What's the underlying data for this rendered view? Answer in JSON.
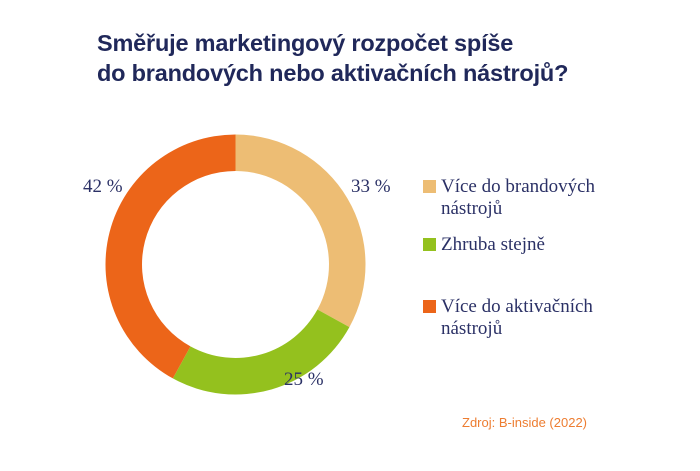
{
  "title": {
    "line1": "Směřuje marketingový rozpočet spíše",
    "line2": "do brandových nebo aktivačních nástrojů?"
  },
  "source": "Zdroj: B-inside (2022)",
  "colors": {
    "title_navy": "#20285a",
    "label_navy": "#2b3166",
    "source_orange": "#ed7d31",
    "background": "#ffffff"
  },
  "chart_data": {
    "type": "pie",
    "variant": "donut",
    "title": "Směřuje marketingový rozpočet spíše do brandových nebo aktivačních nástrojů?",
    "start_angle_deg": 0,
    "direction": "clockwise",
    "inner_radius_ratio": 0.72,
    "legend_position": "right",
    "slices": [
      {
        "name": "Více do brandových nástrojů",
        "value": 33,
        "label": "33 %",
        "color": "#edbd74"
      },
      {
        "name": "Zhruba stejně",
        "value": 25,
        "label": "25 %",
        "color": "#94c11e"
      },
      {
        "name": "Více do aktivačních nástrojů",
        "value": 42,
        "label": "42 %",
        "color": "#ec6519"
      }
    ]
  }
}
